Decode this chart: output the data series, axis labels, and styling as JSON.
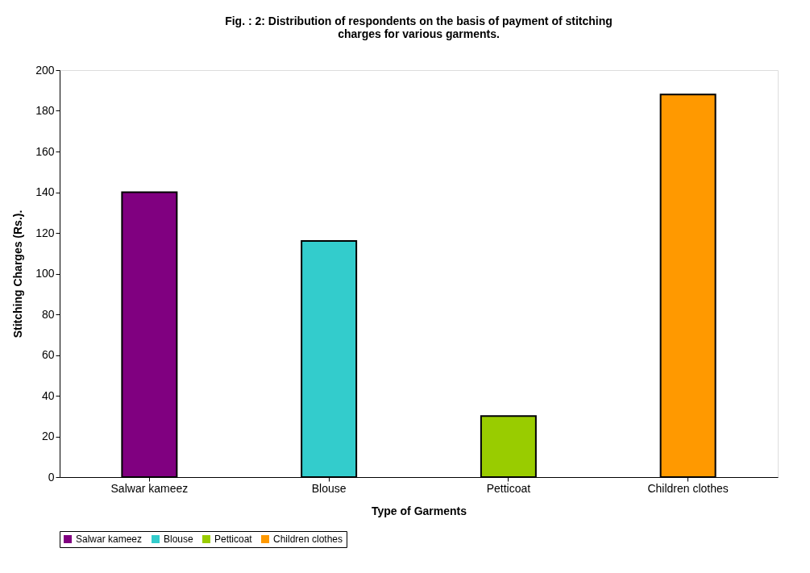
{
  "chart_data": {
    "type": "bar",
    "title": [
      "Fig. : 2: Distribution of respondents on the basis of payment of stitching",
      "charges for various garments."
    ],
    "xlabel": "Type of Garments",
    "ylabel": "Stitching Charges  (Rs.).",
    "categories": [
      "Salwar kameez",
      "Blouse",
      "Petticoat",
      "Children clothes"
    ],
    "series": [
      {
        "name": "Salwar kameez",
        "color": "#800080",
        "values": [
          140,
          null,
          null,
          null
        ]
      },
      {
        "name": "Blouse",
        "color": "#33cccc",
        "values": [
          null,
          116,
          null,
          null
        ]
      },
      {
        "name": "Petticoat",
        "color": "#99cc00",
        "values": [
          null,
          null,
          30,
          null
        ]
      },
      {
        "name": "Children clothes",
        "color": "#ff9900",
        "values": [
          null,
          null,
          null,
          188
        ]
      }
    ],
    "ylim": [
      0,
      200
    ],
    "yticks": [
      0,
      20,
      40,
      60,
      80,
      100,
      120,
      140,
      160,
      180,
      200
    ],
    "grid": false,
    "legend": "bottom"
  }
}
